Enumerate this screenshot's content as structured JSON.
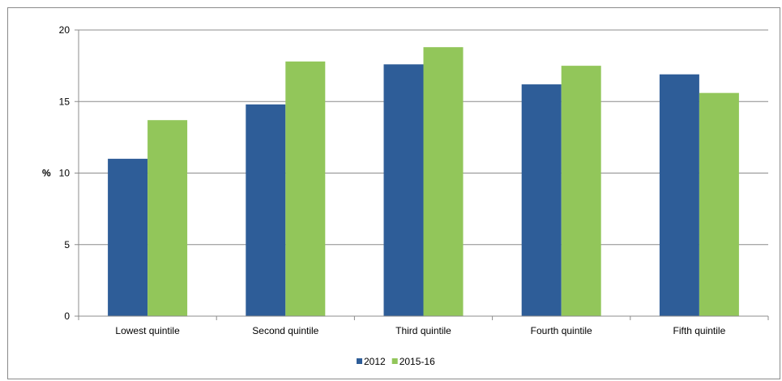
{
  "chart_data": {
    "type": "bar",
    "title": "",
    "xlabel": "",
    "ylabel": "%",
    "ylim": [
      0,
      20
    ],
    "yticks": [
      0,
      5,
      10,
      15,
      20
    ],
    "grid": true,
    "legend_position": "bottom-center",
    "categories": [
      "Lowest quintile",
      "Second quintile",
      "Third quintile",
      "Fourth quintile",
      "Fifth quintile"
    ],
    "series": [
      {
        "name": "2012",
        "color": "#2e5d98",
        "values": [
          11.0,
          14.8,
          17.6,
          16.2,
          16.9
        ]
      },
      {
        "name": "2015-16",
        "color": "#92c65a",
        "values": [
          13.7,
          17.8,
          18.8,
          17.5,
          15.6
        ]
      }
    ]
  }
}
